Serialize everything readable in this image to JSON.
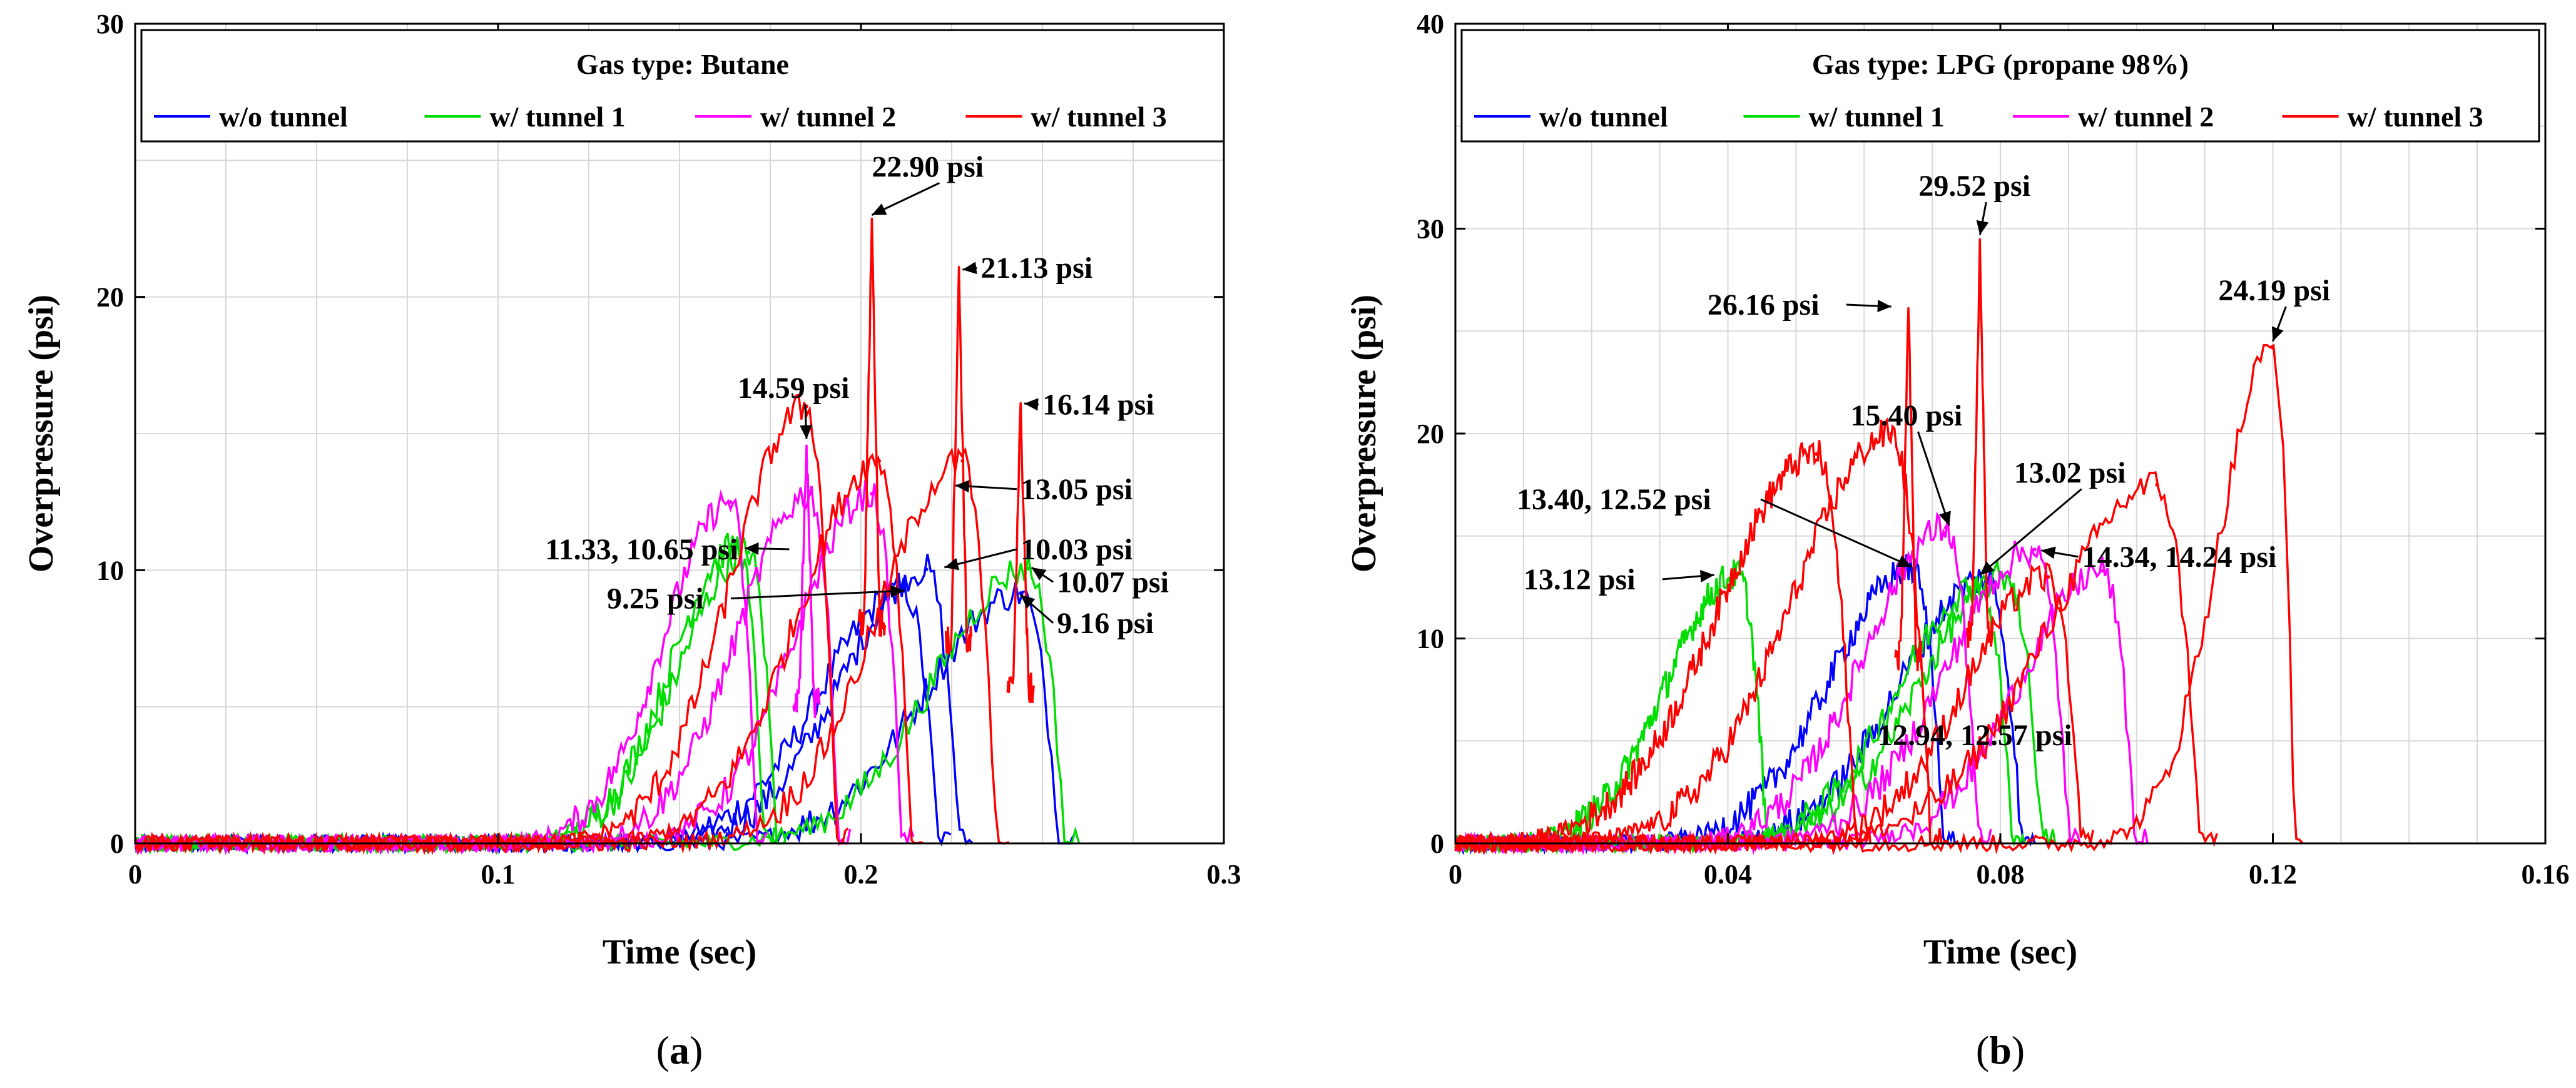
{
  "chart_data": [
    {
      "panel_label_open": "(",
      "panel_label": "a",
      "panel_label_close": ")",
      "type": "line",
      "title": "Gas type: Butane",
      "xlabel": "Time (sec)",
      "ylabel": "Overpressure (psi)",
      "xlim": [
        0,
        0.3
      ],
      "ylim": [
        0,
        30
      ],
      "xticks": [
        0,
        0.1,
        0.2,
        0.3
      ],
      "xtick_labels": [
        "0",
        "0.1",
        "0.2",
        "0.3"
      ],
      "yticks": [
        0,
        10,
        20,
        30
      ],
      "ytick_labels": [
        "0",
        "10",
        "20",
        "30"
      ],
      "grid": true,
      "legend_position": "top",
      "series": [
        {
          "name": "w/o tunnel",
          "color": "#0000ff",
          "peaks": [
            {
              "t": 0.212,
              "p": 9.25,
              "w": 0.058
            },
            {
              "t": 0.218,
              "p": 10.03,
              "w": 0.058
            },
            {
              "t": 0.244,
              "p": 9.16,
              "w": 0.066
            }
          ]
        },
        {
          "name": "w/ tunnel 1",
          "color": "#00dd00",
          "peaks": [
            {
              "t": 0.169,
              "p": 10.65,
              "w": 0.048
            },
            {
              "t": 0.166,
              "p": 10.9,
              "w": 0.046
            },
            {
              "t": 0.246,
              "p": 10.07,
              "w": 0.064
            }
          ]
        },
        {
          "name": "w/ tunnel 2",
          "color": "#ff00ff",
          "peaks": [
            {
              "t": 0.164,
              "p": 12.5,
              "w": 0.046
            },
            {
              "t": 0.186,
              "p": 12.8,
              "w": 0.05
            },
            {
              "t": 0.203,
              "p": 12.8,
              "w": 0.052
            }
          ]
        },
        {
          "name": "w/ tunnel 3",
          "color": "#ff0000",
          "peaks": [
            {
              "t": 0.185,
              "p": 16.0,
              "w": 0.052
            },
            {
              "t": 0.205,
              "p": 14.0,
              "w": 0.056
            },
            {
              "t": 0.228,
              "p": 14.0,
              "w": 0.058
            }
          ]
        }
      ],
      "spikes": [
        {
          "name": "w/ tunnel 3",
          "t": 0.203,
          "p": 22.9
        },
        {
          "name": "w/ tunnel 3",
          "t": 0.227,
          "p": 21.13
        },
        {
          "name": "w/ tunnel 3",
          "t": 0.244,
          "p": 16.14
        },
        {
          "name": "w/ tunnel 2",
          "t": 0.185,
          "p": 14.59
        }
      ],
      "annotations": [
        {
          "text": "22.90 psi",
          "tx": 0.203,
          "ty": 24.4,
          "ax": 0.203,
          "ay": 23.0,
          "head": "down"
        },
        {
          "text": "21.13 psi",
          "tx": 0.233,
          "ty": 20.7,
          "ax": 0.228,
          "ay": 21.0,
          "head": "left"
        },
        {
          "text": "16.14 psi",
          "tx": 0.25,
          "ty": 15.7,
          "ax": 0.245,
          "ay": 16.1,
          "head": "left"
        },
        {
          "text": "14.59 psi",
          "tx": 0.166,
          "ty": 16.3,
          "ax": 0.185,
          "ay": 14.8,
          "head": "down"
        },
        {
          "text": "13.05 psi",
          "tx": 0.244,
          "ty": 12.6,
          "ax": 0.226,
          "ay": 13.1,
          "head": "left"
        },
        {
          "text": "11.33, 10.65 psi",
          "tx": 0.113,
          "ty": 10.4,
          "ax": 0.168,
          "ay": 10.8,
          "head": "right"
        },
        {
          "text": "10.03 psi",
          "tx": 0.244,
          "ty": 10.4,
          "ax": 0.223,
          "ay": 10.1,
          "head": "left"
        },
        {
          "text": "10.07 psi",
          "tx": 0.254,
          "ty": 9.2,
          "ax": 0.247,
          "ay": 10.1,
          "head": "left"
        },
        {
          "text": "9.25 psi",
          "tx": 0.13,
          "ty": 8.6,
          "ax": 0.212,
          "ay": 9.25,
          "head": "right"
        },
        {
          "text": "9.16 psi",
          "tx": 0.254,
          "ty": 7.7,
          "ax": 0.244,
          "ay": 9.1,
          "head": "left"
        }
      ]
    },
    {
      "panel_label_open": "(",
      "panel_label": "b",
      "panel_label_close": ")",
      "type": "line",
      "title": "Gas type: LPG (propane 98%)",
      "xlabel": "Time (sec)",
      "ylabel": "Overpressure (psi)",
      "xlim": [
        0,
        0.16
      ],
      "ylim": [
        0,
        40
      ],
      "xticks": [
        0,
        0.04,
        0.08,
        0.12,
        0.16
      ],
      "xtick_labels": [
        "0",
        "0.04",
        "0.08",
        "0.12",
        "0.16"
      ],
      "yticks": [
        0,
        10,
        20,
        30,
        40
      ],
      "ytick_labels": [
        "0",
        "10",
        "20",
        "30",
        "40"
      ],
      "grid": true,
      "legend_position": "top",
      "series": [
        {
          "name": "w/o tunnel",
          "color": "#0000ff",
          "peaks": [
            {
              "t": 0.067,
              "p": 13.4,
              "w": 0.03
            },
            {
              "t": 0.078,
              "p": 12.94,
              "w": 0.032
            }
          ]
        },
        {
          "name": "w/ tunnel 1",
          "color": "#00dd00",
          "peaks": [
            {
              "t": 0.0415,
              "p": 13.12,
              "w": 0.026
            },
            {
              "t": 0.077,
              "p": 12.57,
              "w": 0.03
            },
            {
              "t": 0.081,
              "p": 13.02,
              "w": 0.032
            }
          ]
        },
        {
          "name": "w/ tunnel 2",
          "color": "#ff00ff",
          "peaks": [
            {
              "t": 0.072,
              "p": 15.4,
              "w": 0.03
            },
            {
              "t": 0.085,
              "p": 14.34,
              "w": 0.032
            },
            {
              "t": 0.095,
              "p": 13.3,
              "w": 0.03
            }
          ]
        },
        {
          "name": "w/ tunnel 3",
          "color": "#ff0000",
          "peaks": [
            {
              "t": 0.053,
              "p": 19.0,
              "w": 0.036
            },
            {
              "t": 0.064,
              "p": 20.0,
              "w": 0.036
            },
            {
              "t": 0.087,
              "p": 13.0,
              "w": 0.03
            },
            {
              "t": 0.103,
              "p": 17.5,
              "w": 0.04
            },
            {
              "t": 0.12,
              "p": 24.19,
              "w": 0.02
            }
          ]
        }
      ],
      "spikes": [
        {
          "name": "w/ tunnel 3",
          "t": 0.0665,
          "p": 26.16
        },
        {
          "name": "w/ tunnel 3",
          "t": 0.077,
          "p": 29.52
        }
      ],
      "annotations": [
        {
          "text": "29.52 psi",
          "tx": 0.068,
          "ty": 31.6,
          "ax": 0.077,
          "ay": 29.7,
          "head": "down"
        },
        {
          "text": "26.16 psi",
          "tx": 0.037,
          "ty": 25.8,
          "ax": 0.064,
          "ay": 26.2,
          "head": "right"
        },
        {
          "text": "24.19 psi",
          "tx": 0.112,
          "ty": 26.5,
          "ax": 0.12,
          "ay": 24.5,
          "head": "down"
        },
        {
          "text": "15.40 psi",
          "tx": 0.058,
          "ty": 20.4,
          "ax": 0.0725,
          "ay": 15.5,
          "head": "down"
        },
        {
          "text": "13.02 psi",
          "tx": 0.082,
          "ty": 17.6,
          "ax": 0.077,
          "ay": 13.1,
          "head": "down"
        },
        {
          "text": "13.40, 12.52 psi",
          "tx": 0.009,
          "ty": 16.3,
          "ax": 0.067,
          "ay": 13.5,
          "head": "right"
        },
        {
          "text": "14.34, 14.24 psi",
          "tx": 0.092,
          "ty": 13.5,
          "ax": 0.086,
          "ay": 14.3,
          "head": "left"
        },
        {
          "text": "13.12 psi",
          "tx": 0.01,
          "ty": 12.4,
          "ax": 0.038,
          "ay": 13.1,
          "head": "right"
        },
        {
          "text": "12.94, 12.57 psi",
          "tx": 0.062,
          "ty": 4.8,
          "ax": 0,
          "ay": 0,
          "head": "none"
        }
      ]
    }
  ]
}
